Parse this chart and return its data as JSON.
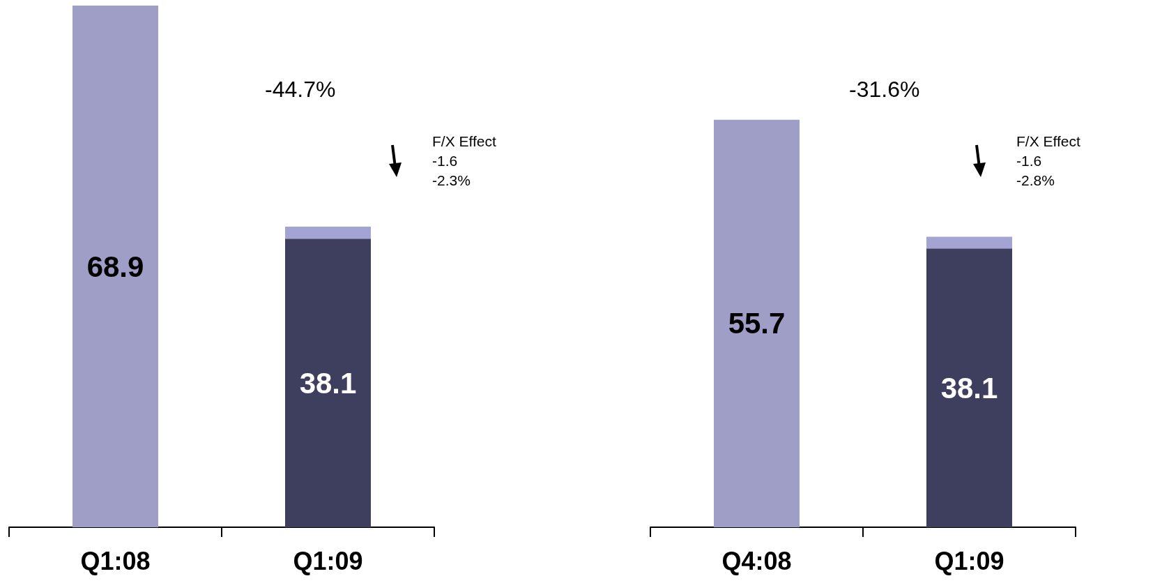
{
  "chart_data": [
    {
      "type": "bar",
      "stacked": true,
      "categories": [
        "Q1:08",
        "Q1:09"
      ],
      "series": [
        {
          "colors": [
            "#9e9ec6",
            "#3e3e5e"
          ],
          "values": [
            68.9,
            38.1
          ],
          "value_labels": [
            "68.9",
            "38.1"
          ]
        },
        {
          "color": "#a4a4d4",
          "values": [
            null,
            1.6
          ]
        }
      ],
      "annotations": [
        "-44.7%",
        "F/X Effect\n-1.6\n-2.3%"
      ]
    },
    {
      "type": "bar",
      "stacked": true,
      "categories": [
        "Q4:08",
        "Q1:09"
      ],
      "series": [
        {
          "colors": [
            "#9e9ec6",
            "#3e3e5e"
          ],
          "values": [
            55.7,
            38.1
          ],
          "value_labels": [
            "55.7",
            "38.1"
          ]
        },
        {
          "color": "#a4a4d4",
          "values": [
            null,
            1.6
          ]
        }
      ],
      "annotations": [
        "-31.6%",
        "F/X Effect\n-1.6\n-2.8%"
      ]
    }
  ]
}
